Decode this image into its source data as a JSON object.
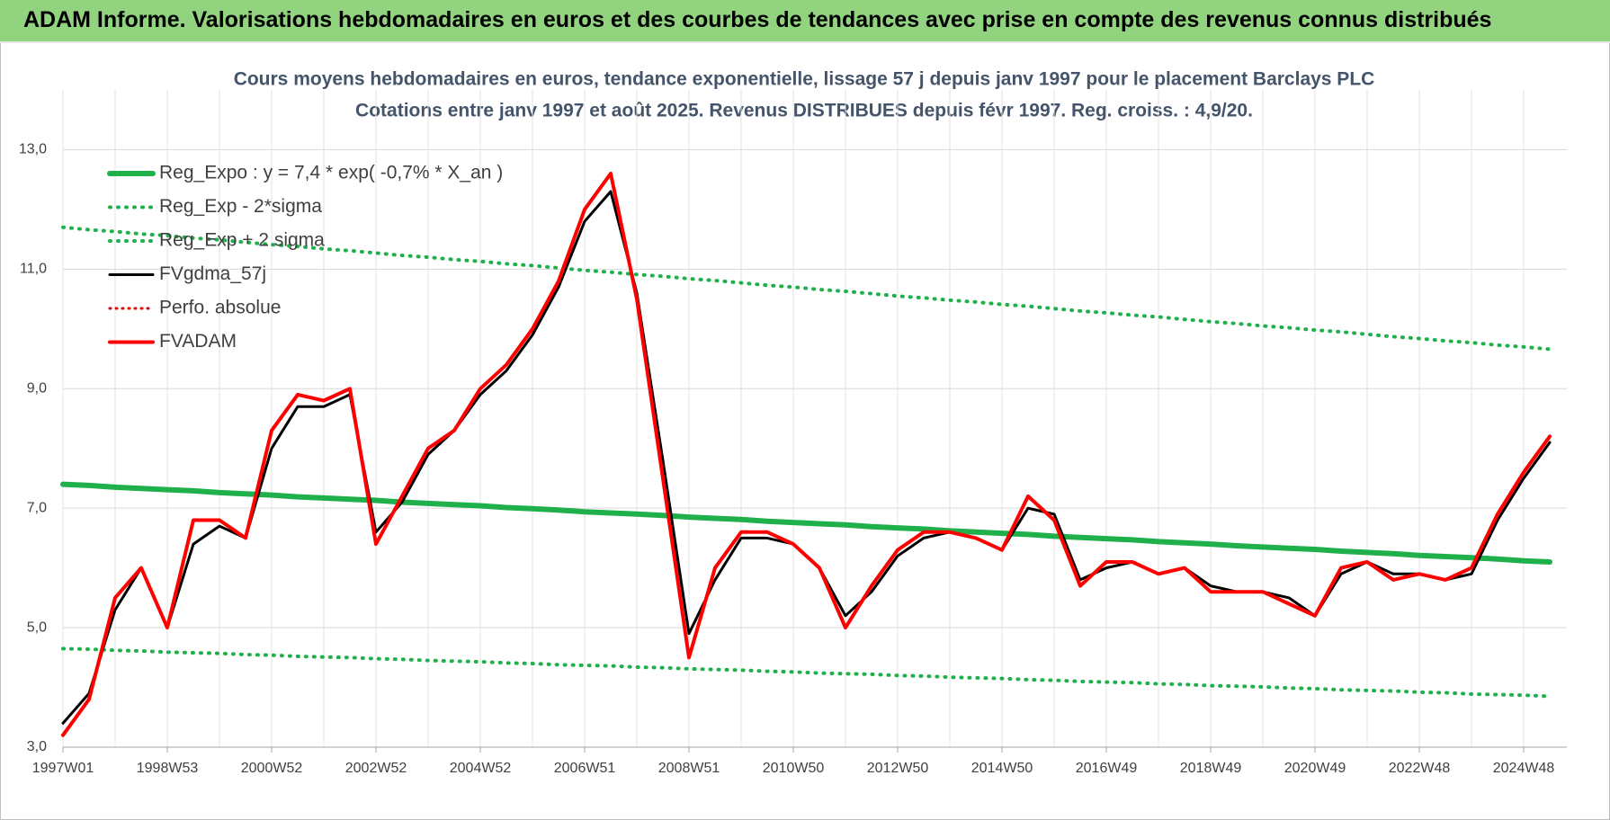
{
  "header": {
    "title": "ADAM Informe. Valorisations hebdomadaires en euros et des courbes de tendances avec prise en compte des revenus connus distribués"
  },
  "chart_data": {
    "type": "line",
    "title": "Cours moyens hebdomadaires en euros, tendance exponentielle, lissage 57 j depuis janv 1997  pour le placement Barclays PLC",
    "subtitle": "Cotations entre janv 1997 et août 2025.  Revenus DISTRIBUES depuis févr 1997.  Reg. croiss. : 4,9/20.",
    "categories": [
      "1997W01",
      null,
      null,
      null,
      "1998W53",
      null,
      null,
      null,
      "2000W52",
      null,
      null,
      null,
      "2002W52",
      null,
      null,
      null,
      "2004W52",
      null,
      null,
      null,
      "2006W51",
      null,
      null,
      null,
      "2008W51",
      null,
      null,
      null,
      "2010W50",
      null,
      null,
      null,
      "2012W50",
      null,
      null,
      null,
      "2014W50",
      null,
      null,
      null,
      "2016W49",
      null,
      null,
      null,
      "2018W49",
      null,
      null,
      null,
      "2020W49",
      null,
      null,
      null,
      "2022W48",
      null,
      null,
      null,
      "2024W48",
      null
    ],
    "ylim": [
      3,
      14
    ],
    "yticks": [
      {
        "value": 3,
        "label": "3,0"
      },
      {
        "value": 5,
        "label": "5,0"
      },
      {
        "value": 7,
        "label": "7,0"
      },
      {
        "value": 9,
        "label": "9,0"
      },
      {
        "value": 11,
        "label": "11,0"
      },
      {
        "value": 13,
        "label": "13,0"
      }
    ],
    "grid": true,
    "legend": "upper left",
    "series": [
      {
        "name": "Reg_Expo : y = 7,4 * exp( -0,7% *  X_an )",
        "color": "#1fb04b",
        "style": "solid",
        "width": 6,
        "values": [
          7.4,
          7.38,
          7.35,
          7.33,
          7.31,
          7.29,
          7.26,
          7.24,
          7.22,
          7.19,
          7.17,
          7.15,
          7.13,
          7.1,
          7.08,
          7.06,
          7.04,
          7.01,
          6.99,
          6.97,
          6.94,
          6.92,
          6.9,
          6.88,
          6.85,
          6.83,
          6.81,
          6.78,
          6.76,
          6.74,
          6.72,
          6.69,
          6.67,
          6.65,
          6.62,
          6.6,
          6.58,
          6.56,
          6.53,
          6.51,
          6.49,
          6.47,
          6.44,
          6.42,
          6.4,
          6.37,
          6.35,
          6.33,
          6.31,
          6.28,
          6.26,
          6.24,
          6.21,
          6.19,
          6.17,
          6.15,
          6.12,
          6.1
        ]
      },
      {
        "name": "Reg_Exp - 2*sigma",
        "color": "#1fb04b",
        "style": "dotted",
        "width": 4,
        "values": [
          4.65,
          4.64,
          4.62,
          4.61,
          4.59,
          4.58,
          4.57,
          4.55,
          4.54,
          4.52,
          4.51,
          4.5,
          4.48,
          4.47,
          4.45,
          4.44,
          4.43,
          4.41,
          4.4,
          4.38,
          4.37,
          4.36,
          4.34,
          4.33,
          4.31,
          4.3,
          4.29,
          4.27,
          4.26,
          4.24,
          4.23,
          4.22,
          4.2,
          4.19,
          4.17,
          4.16,
          4.15,
          4.13,
          4.12,
          4.1,
          4.09,
          4.08,
          4.06,
          4.05,
          4.03,
          4.02,
          4.01,
          3.99,
          3.98,
          3.96,
          3.95,
          3.94,
          3.92,
          3.91,
          3.89,
          3.88,
          3.87,
          3.85
        ]
      },
      {
        "name": "Reg_Exp + 2 sigma",
        "color": "#1fb04b",
        "style": "dotted",
        "width": 4,
        "values": [
          11.7,
          11.66,
          11.63,
          11.59,
          11.56,
          11.52,
          11.49,
          11.45,
          11.41,
          11.38,
          11.34,
          11.31,
          11.27,
          11.23,
          11.2,
          11.16,
          11.13,
          11.09,
          11.06,
          11.02,
          10.98,
          10.95,
          10.91,
          10.88,
          10.84,
          10.81,
          10.77,
          10.73,
          10.7,
          10.66,
          10.63,
          10.59,
          10.55,
          10.52,
          10.48,
          10.45,
          10.41,
          10.38,
          10.34,
          10.3,
          10.27,
          10.23,
          10.2,
          10.16,
          10.12,
          10.09,
          10.05,
          10.02,
          9.98,
          9.95,
          9.91,
          9.87,
          9.84,
          9.8,
          9.77,
          9.73,
          9.7,
          9.66
        ]
      },
      {
        "name": "FVgdma_57j",
        "color": "#000000",
        "style": "solid",
        "width": 3,
        "values": [
          3.4,
          3.9,
          5.3,
          6.0,
          5.0,
          6.4,
          6.7,
          6.5,
          8.0,
          8.7,
          8.7,
          8.9,
          6.6,
          7.1,
          7.9,
          8.3,
          8.9,
          9.3,
          9.9,
          10.7,
          11.8,
          12.3,
          10.6,
          7.8,
          4.9,
          5.8,
          6.5,
          6.5,
          6.4,
          6.0,
          5.2,
          5.6,
          6.2,
          6.5,
          6.6,
          6.5,
          6.3,
          7.0,
          6.9,
          5.8,
          6.0,
          6.1,
          5.9,
          6.0,
          5.7,
          5.6,
          5.6,
          5.5,
          5.2,
          5.9,
          6.1,
          5.9,
          5.9,
          5.8,
          5.9,
          6.8,
          7.5,
          8.1
        ]
      },
      {
        "name": "Perfo. absolue",
        "color": "#e00000",
        "style": "dotted",
        "width": 3,
        "values": [
          null,
          null,
          null,
          null,
          null,
          null,
          null,
          null,
          null,
          null,
          null,
          null,
          null,
          null,
          null,
          null,
          null,
          null,
          null,
          null,
          null,
          null,
          null,
          null,
          null,
          null,
          null,
          null,
          null,
          null,
          null,
          null,
          null,
          null,
          null,
          null,
          null,
          null,
          null,
          null,
          null,
          null,
          null,
          null,
          null,
          null,
          null,
          null,
          null,
          null,
          null,
          null,
          null,
          null,
          null,
          null,
          null,
          null
        ]
      },
      {
        "name": "FVADAM",
        "color": "#ff0000",
        "style": "solid",
        "width": 4,
        "values": [
          3.2,
          3.8,
          5.5,
          6.0,
          5.0,
          6.8,
          6.8,
          6.5,
          8.3,
          8.9,
          8.8,
          9.0,
          6.4,
          7.2,
          8.0,
          8.3,
          9.0,
          9.4,
          10.0,
          10.8,
          12.0,
          12.6,
          10.5,
          7.5,
          4.5,
          6.0,
          6.6,
          6.6,
          6.4,
          6.0,
          5.0,
          5.7,
          6.3,
          6.6,
          6.6,
          6.5,
          6.3,
          7.2,
          6.8,
          5.7,
          6.1,
          6.1,
          5.9,
          6.0,
          5.6,
          5.6,
          5.6,
          5.4,
          5.2,
          6.0,
          6.1,
          5.8,
          5.9,
          5.8,
          6.0,
          6.9,
          7.6,
          8.2
        ]
      }
    ]
  }
}
